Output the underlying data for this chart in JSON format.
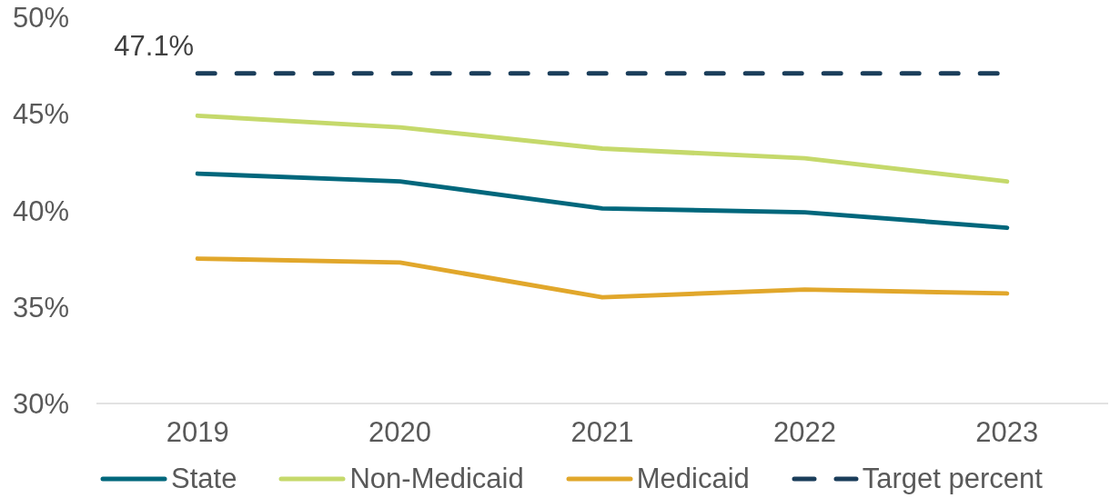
{
  "chart_data": {
    "type": "line",
    "categories": [
      "2019",
      "2020",
      "2021",
      "2022",
      "2023"
    ],
    "series": [
      {
        "name": "State",
        "color": "#00677c",
        "values": [
          41.9,
          41.5,
          40.1,
          39.9,
          39.1
        ]
      },
      {
        "name": "Non-Medicaid",
        "color": "#c5d96b",
        "values": [
          44.9,
          44.3,
          43.2,
          42.7,
          41.5
        ]
      },
      {
        "name": "Medicaid",
        "color": "#e1a72b",
        "values": [
          37.5,
          37.3,
          35.5,
          35.9,
          35.7
        ]
      },
      {
        "name": "Target percent",
        "color": "#1a3d5a",
        "values": [
          47.1,
          47.1,
          47.1,
          47.1,
          47.1
        ],
        "line_style": "dashed",
        "value_labels": [
          "47.1%",
          null,
          null,
          null,
          null
        ]
      }
    ],
    "ylim": [
      30,
      50
    ],
    "yticks": [
      {
        "value": 30,
        "label": "30%"
      },
      {
        "value": 35,
        "label": "35%"
      },
      {
        "value": 40,
        "label": "40%"
      },
      {
        "value": 45,
        "label": "45%"
      },
      {
        "value": 50,
        "label": "50%"
      }
    ],
    "legend": "bottom",
    "marker": "none",
    "line_style": "solid"
  }
}
